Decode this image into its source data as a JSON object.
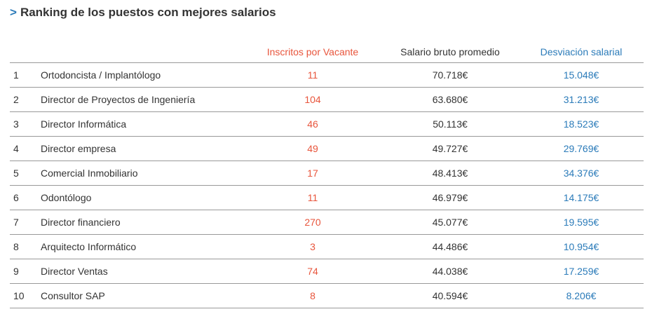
{
  "title": "Ranking de los puestos con mejores salarios",
  "title_marker": ">",
  "colors": {
    "accent_orange": "#e8553c",
    "accent_blue": "#2b7bb9",
    "text": "#333333",
    "rule": "#999999"
  },
  "chart_data": {
    "type": "table",
    "title": "Ranking de los puestos con mejores salarios",
    "columns": [
      "",
      "",
      "Inscritos por Vacante",
      "Salario bruto promedio",
      "Desviación salarial"
    ],
    "rows": [
      {
        "rank": "1",
        "puesto": "Ortodoncista / Implantólogo",
        "inscritos": "11",
        "salario": "70.718€",
        "desviacion": "15.048€"
      },
      {
        "rank": "2",
        "puesto": "Director de Proyectos de Ingeniería",
        "inscritos": "104",
        "salario": "63.680€",
        "desviacion": "31.213€"
      },
      {
        "rank": "3",
        "puesto": "Director Informática",
        "inscritos": "46",
        "salario": "50.113€",
        "desviacion": "18.523€"
      },
      {
        "rank": "4",
        "puesto": "Director empresa",
        "inscritos": "49",
        "salario": "49.727€",
        "desviacion": "29.769€"
      },
      {
        "rank": "5",
        "puesto": "Comercial Inmobiliario",
        "inscritos": "17",
        "salario": "48.413€",
        "desviacion": "34.376€"
      },
      {
        "rank": "6",
        "puesto": "Odontólogo",
        "inscritos": "11",
        "salario": "46.979€",
        "desviacion": "14.175€"
      },
      {
        "rank": "7",
        "puesto": "Director financiero",
        "inscritos": "270",
        "salario": "45.077€",
        "desviacion": "19.595€"
      },
      {
        "rank": "8",
        "puesto": "Arquitecto Informático",
        "inscritos": "3",
        "salario": "44.486€",
        "desviacion": "10.954€"
      },
      {
        "rank": "9",
        "puesto": "Director Ventas",
        "inscritos": "74",
        "salario": "44.038€",
        "desviacion": "17.259€"
      },
      {
        "rank": "10",
        "puesto": "Consultor SAP",
        "inscritos": "8",
        "salario": "40.594€",
        "desviacion": "8.206€"
      }
    ]
  }
}
